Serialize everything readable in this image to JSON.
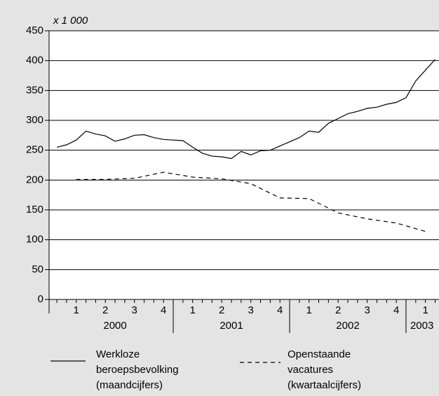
{
  "chart_data": {
    "type": "line",
    "ylabel": "x 1 000",
    "ylim": [
      0,
      450
    ],
    "yticks": [
      0,
      50,
      100,
      150,
      200,
      250,
      300,
      350,
      400,
      450
    ],
    "grid": true,
    "xlim": [
      -0.8,
      39.4
    ],
    "quarters": [
      "1",
      "2",
      "3",
      "4",
      "1",
      "2",
      "3",
      "4",
      "1",
      "2",
      "3",
      "4",
      "1"
    ],
    "years": [
      "2000",
      "2001",
      "2002",
      "2003"
    ],
    "series": [
      {
        "name": "Werkloze beroepsbevolking (maandcijfers)",
        "color": "#000000",
        "dash": false,
        "x": [
          0,
          1,
          2,
          3,
          4,
          5,
          6,
          7,
          8,
          9,
          10,
          11,
          12,
          13,
          14,
          15,
          16,
          17,
          18,
          19,
          20,
          21,
          22,
          23,
          24,
          25,
          26,
          27,
          28,
          29,
          30,
          31,
          32,
          33,
          34,
          35,
          36,
          37,
          38,
          39
        ],
        "values": [
          255,
          259,
          267,
          282,
          277,
          274,
          265,
          269,
          275,
          276,
          271,
          268,
          267,
          266,
          255,
          245,
          240,
          239,
          236,
          248,
          242,
          249,
          250,
          257,
          264,
          271,
          282,
          280,
          295,
          303,
          311,
          315,
          320,
          322,
          327,
          330,
          338,
          366,
          384,
          402
        ]
      },
      {
        "name": "Openstaande vacatures (kwartaalcijfers)",
        "color": "#000000",
        "dash": true,
        "x": [
          2,
          5,
          8,
          11,
          14,
          17,
          20,
          23,
          26,
          29,
          32,
          35,
          38
        ],
        "values": [
          201,
          201,
          203,
          213,
          205,
          202,
          194,
          170,
          169,
          145,
          135,
          128,
          114
        ]
      }
    ]
  }
}
